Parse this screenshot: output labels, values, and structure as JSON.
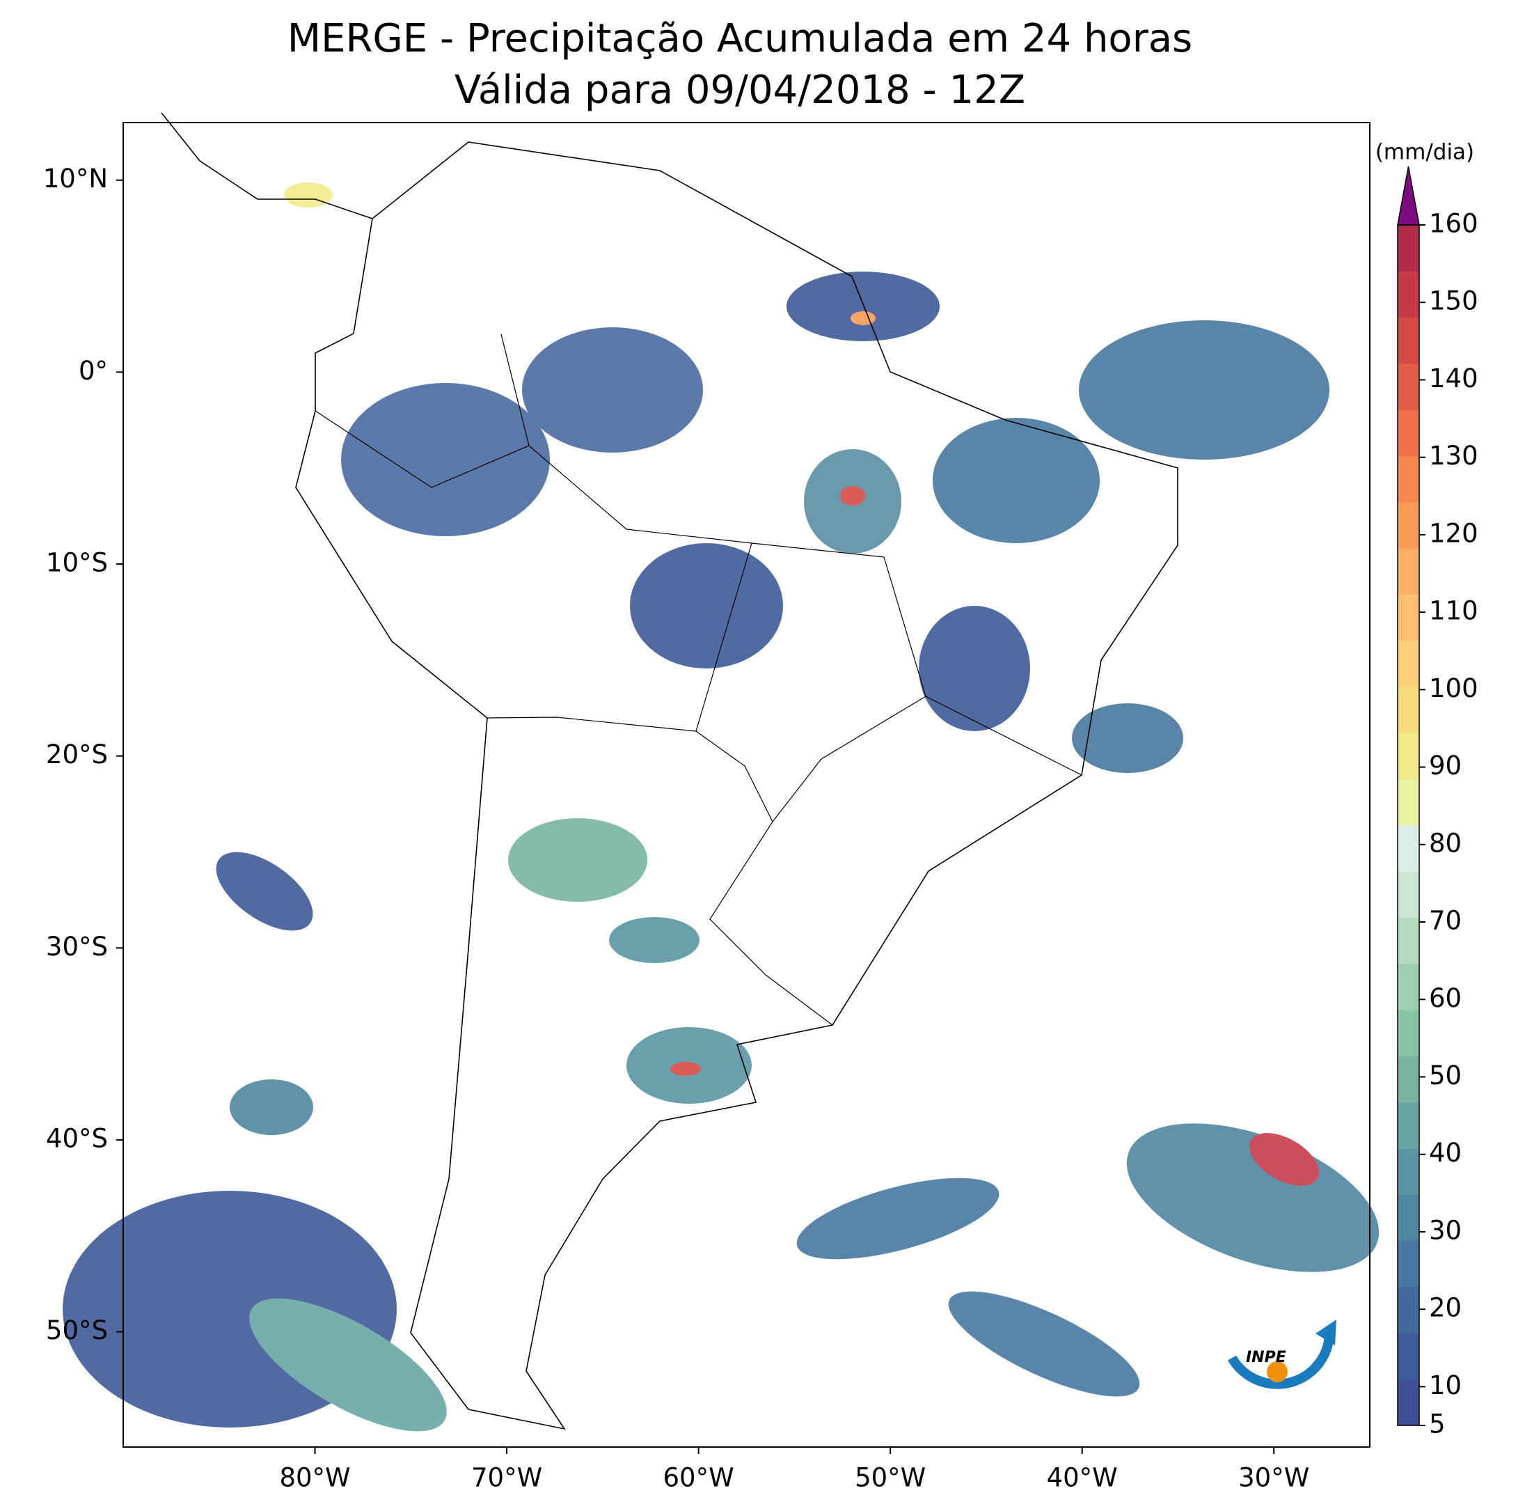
{
  "chart_data": {
    "type": "map",
    "title": "MERGE - Precipitação Acumulada em 24 horas",
    "subtitle": "Válida para 09/04/2018 - 12Z",
    "xlim": [
      -90,
      -25
    ],
    "ylim": [
      -56,
      13
    ],
    "xticks": [
      {
        "value": -80,
        "label": "80°W"
      },
      {
        "value": -70,
        "label": "70°W"
      },
      {
        "value": -60,
        "label": "60°W"
      },
      {
        "value": -50,
        "label": "50°W"
      },
      {
        "value": -40,
        "label": "40°W"
      },
      {
        "value": -30,
        "label": "30°W"
      }
    ],
    "yticks": [
      {
        "value": 10,
        "label": "10°N"
      },
      {
        "value": 0,
        "label": "0°"
      },
      {
        "value": -10,
        "label": "10°S"
      },
      {
        "value": -20,
        "label": "20°S"
      },
      {
        "value": -30,
        "label": "30°S"
      },
      {
        "value": -40,
        "label": "40°S"
      },
      {
        "value": -50,
        "label": "50°S"
      }
    ],
    "colorbar": {
      "label": "(mm/dia)",
      "lim": [
        5,
        160
      ],
      "ticks": [
        5,
        10,
        20,
        30,
        40,
        50,
        60,
        70,
        80,
        90,
        100,
        110,
        120,
        130,
        140,
        150,
        160
      ],
      "colors": [
        "#3f4f95",
        "#3f5a98",
        "#42699c",
        "#47789f",
        "#4f87a1",
        "#5a95a3",
        "#67a6a3",
        "#77b4a2",
        "#88c2a4",
        "#9fcfae",
        "#b5dcbf",
        "#cbe6d3",
        "#dcefe6",
        "#eaf4a0",
        "#f1ea8a",
        "#f7dc7e",
        "#fbd07a",
        "#fdc070",
        "#fcae64",
        "#f99b58",
        "#f4864e",
        "#ee7149",
        "#e35d46",
        "#d64a45",
        "#c63a48",
        "#b22c49"
      ],
      "extend_color": "#7b0b7e"
    },
    "logo_text": "INPE"
  }
}
